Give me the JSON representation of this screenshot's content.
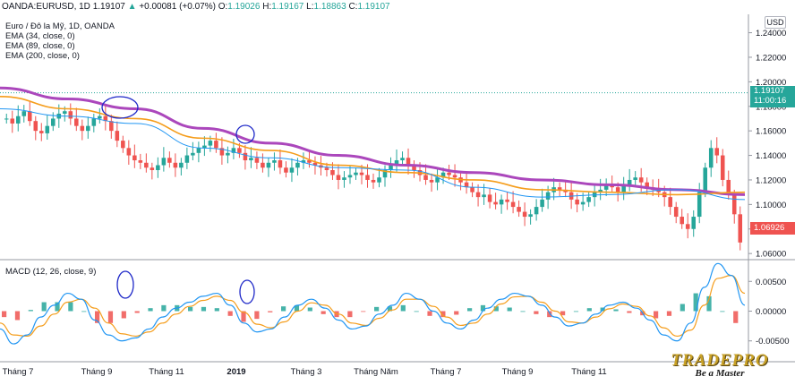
{
  "header": {
    "symbol": "OANDA:EURUSD, 1D",
    "last": "1.19107",
    "change": "+0.00081 (+0.07%)",
    "o_label": "O:",
    "o_value": "1.19026",
    "h_label": "H:",
    "h_value": "1.19167",
    "l_label": "L:",
    "l_value": "1.18863",
    "c_label": "C:",
    "c_value": "1.19107"
  },
  "legend": {
    "title": "Euro / Đô la Mỹ, 1D, OANDA",
    "ema1": "EMA (34, close, 0)",
    "ema2": "EMA (89, close, 0)",
    "ema3": "EMA (200, close, 0)",
    "macd": "MACD (12, 26, close, 9)"
  },
  "currency_label": "USD",
  "tags": {
    "last_price": "1.19107",
    "countdown": "11:00:16",
    "close_price": "1.06926"
  },
  "colors": {
    "up": "#26a69a",
    "down": "#ef5350",
    "ema34": "#2196f3",
    "ema89": "#f59d1b",
    "ema200": "#ab47bc",
    "macd": "#2196f3",
    "signal": "#f59d1b",
    "annotation": "#1e28c8"
  },
  "logo": {
    "name": "TRADEPRO",
    "tagline": "Be a Master"
  },
  "chart_data": [
    {
      "type": "candlestick",
      "title": "Euro / Đô la Mỹ, 1D, OANDA",
      "ylabel": "USD",
      "ylim": [
        1.055,
        1.255
      ],
      "y_ticks": [
        "1.24000",
        "1.22000",
        "1.20000",
        "1.18000",
        "1.16000",
        "1.14000",
        "1.12000",
        "1.10000",
        "1.08000",
        "1.06000"
      ],
      "x_ticks": [
        "Tháng 7",
        "Tháng 9",
        "Tháng 11",
        "2019",
        "Tháng 3",
        "Tháng Năm",
        "Tháng 7",
        "Tháng 9",
        "Tháng 11"
      ],
      "last_price_line": 1.19107,
      "close_series": [
        1.17,
        1.166,
        1.172,
        1.176,
        1.168,
        1.16,
        1.158,
        1.164,
        1.17,
        1.174,
        1.176,
        1.17,
        1.164,
        1.16,
        1.164,
        1.17,
        1.172,
        1.168,
        1.16,
        1.152,
        1.146,
        1.14,
        1.136,
        1.134,
        1.13,
        1.128,
        1.132,
        1.138,
        1.134,
        1.13,
        1.134,
        1.14,
        1.142,
        1.146,
        1.148,
        1.152,
        1.146,
        1.14,
        1.142,
        1.146,
        1.142,
        1.136,
        1.138,
        1.134,
        1.13,
        1.134,
        1.136,
        1.13,
        1.126,
        1.13,
        1.134,
        1.136,
        1.134,
        1.132,
        1.13,
        1.128,
        1.124,
        1.12,
        1.122,
        1.124,
        1.126,
        1.124,
        1.12,
        1.118,
        1.122,
        1.128,
        1.132,
        1.136,
        1.138,
        1.132,
        1.128,
        1.124,
        1.12,
        1.118,
        1.122,
        1.126,
        1.124,
        1.122,
        1.118,
        1.114,
        1.11,
        1.106,
        1.108,
        1.102,
        1.1,
        1.104,
        1.102,
        1.098,
        1.094,
        1.09,
        1.092,
        1.098,
        1.104,
        1.11,
        1.114,
        1.112,
        1.11,
        1.104,
        1.1,
        1.102,
        1.106,
        1.11,
        1.112,
        1.116,
        1.114,
        1.11,
        1.116,
        1.12,
        1.122,
        1.118,
        1.114,
        1.112,
        1.11,
        1.106,
        1.098,
        1.09,
        1.084,
        1.08,
        1.09,
        1.11,
        1.13,
        1.146,
        1.14,
        1.12,
        1.108,
        1.092,
        1.069
      ],
      "ema200_series": [
        1.195,
        1.186,
        1.178,
        1.162,
        1.15,
        1.14,
        1.132,
        1.126,
        1.12,
        1.116,
        1.112,
        1.108
      ],
      "ema89_series": [
        1.188,
        1.178,
        1.17,
        1.154,
        1.144,
        1.132,
        1.126,
        1.12,
        1.112,
        1.11,
        1.108,
        1.11
      ],
      "ema34_series": [
        1.178,
        1.172,
        1.166,
        1.146,
        1.138,
        1.13,
        1.128,
        1.114,
        1.106,
        1.108,
        1.112,
        1.104
      ]
    },
    {
      "type": "line",
      "title": "MACD (12, 26, close, 9)",
      "ylim": [
        -0.0085,
        0.0085
      ],
      "y_ticks": [
        "0.00500",
        "0.00000",
        "-0.00500"
      ],
      "series": [
        {
          "name": "MACD",
          "values": [
            -0.003,
            -0.0055,
            -0.004,
            -0.001,
            0.001,
            0.003,
            0.002,
            -0.0015,
            -0.004,
            -0.005,
            -0.0045,
            -0.003,
            -0.001,
            0.0005,
            0.0015,
            0.0025,
            0.003,
            0.001,
            -0.002,
            -0.0035,
            -0.003,
            -0.001,
            0.001,
            0.002,
            0.0005,
            -0.0015,
            -0.003,
            -0.0025,
            -0.0005,
            0.001,
            0.003,
            0.002,
            0.0,
            -0.002,
            -0.003,
            -0.0015,
            0.0005,
            0.002,
            0.003,
            0.0025,
            0.001,
            -0.001,
            -0.0025,
            -0.002,
            -0.0005,
            0.001,
            0.0015,
            0.0005,
            -0.0015,
            -0.004,
            -0.005,
            -0.002,
            0.004,
            0.008,
            0.006,
            0.001
          ]
        },
        {
          "name": "Signal",
          "values": [
            -0.002,
            -0.004,
            -0.0042,
            -0.0025,
            -0.0005,
            0.0015,
            0.002,
            0.0005,
            -0.002,
            -0.0038,
            -0.0042,
            -0.0035,
            -0.002,
            -0.0005,
            0.0008,
            0.0018,
            0.0025,
            0.0018,
            -0.0002,
            -0.0022,
            -0.0028,
            -0.0018,
            0.0,
            0.0014,
            0.001,
            -0.0005,
            -0.002,
            -0.0024,
            -0.0012,
            0.0002,
            0.002,
            0.002,
            0.0008,
            -0.001,
            -0.0024,
            -0.002,
            -0.0005,
            0.0012,
            0.0024,
            0.0025,
            0.0015,
            0.0,
            -0.0018,
            -0.002,
            -0.001,
            0.0004,
            0.0012,
            0.0008,
            -0.0008,
            -0.0028,
            -0.0042,
            -0.0032,
            0.001,
            0.0055,
            0.006,
            0.003
          ]
        }
      ]
    }
  ]
}
